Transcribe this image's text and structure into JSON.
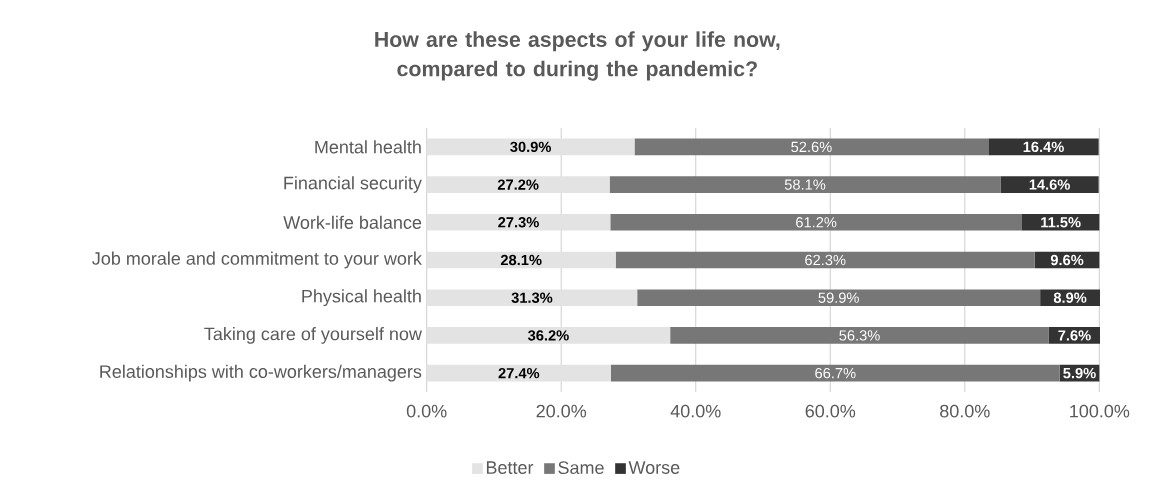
{
  "chart_data": {
    "type": "bar",
    "orientation": "horizontal",
    "stacked": true,
    "title": "How are these aspects of your life now, compared to during the pandemic?",
    "categories": [
      "Mental health",
      "Financial security",
      "Work-life balance",
      "Job morale and commitment to your work",
      "Physical health",
      "Taking care of yourself now",
      "Relationships with co-workers/managers"
    ],
    "series": [
      {
        "name": "Better",
        "color": "#e3e3e3",
        "values": [
          30.9,
          27.2,
          27.3,
          28.1,
          31.3,
          36.2,
          27.4
        ],
        "value_labels": [
          "30.9%",
          "27.2%",
          "27.3%",
          "28.1%",
          "31.3%",
          "36.2%",
          "27.4%"
        ]
      },
      {
        "name": "Same",
        "color": "#777777",
        "values": [
          52.6,
          58.1,
          61.2,
          62.3,
          59.9,
          56.3,
          66.7
        ],
        "value_labels": [
          "52.6%",
          "58.1%",
          "61.2%",
          "62.3%",
          "59.9%",
          "56.3%",
          "66.7%"
        ]
      },
      {
        "name": "Worse",
        "color": "#333333",
        "values": [
          16.4,
          14.6,
          11.5,
          9.6,
          8.9,
          7.6,
          5.9
        ],
        "value_labels": [
          "16.4%",
          "14.6%",
          "11.5%",
          "9.6%",
          "8.9%",
          "7.6%",
          "5.9%"
        ]
      }
    ],
    "xlim": [
      0,
      100.1
    ],
    "xticks": [
      {
        "value": 0,
        "label": "0.0%"
      },
      {
        "value": 20,
        "label": "20.0%"
      },
      {
        "value": 40,
        "label": "40.0%"
      },
      {
        "value": 60,
        "label": "60.0%"
      },
      {
        "value": 80,
        "label": "80.0%"
      },
      {
        "value": 100,
        "label": "100.0%"
      }
    ],
    "grid": "x",
    "legend": "bottom"
  }
}
